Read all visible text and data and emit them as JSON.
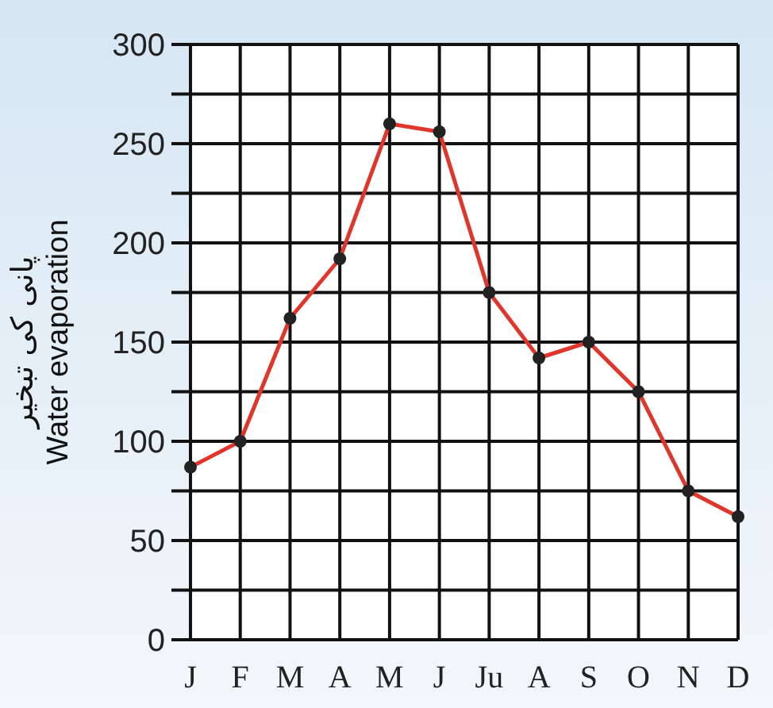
{
  "chart_data": {
    "type": "line",
    "ylabel": "پانی کی تبخیر\nWater evaporation",
    "categories": [
      "J",
      "F",
      "M",
      "A",
      "M",
      "J",
      "Ju",
      "A",
      "S",
      "O",
      "N",
      "D"
    ],
    "series": [
      {
        "color": "#e0352b",
        "values": [
          87,
          100,
          162,
          192,
          260,
          256,
          175,
          142,
          150,
          125,
          75,
          62
        ]
      }
    ],
    "ylim": [
      0,
      300
    ],
    "yticks": [
      0,
      {
        "value": 25,
        "label": null
      },
      50,
      {
        "value": 75,
        "label": null
      },
      100,
      {
        "value": 125,
        "label": null
      },
      150,
      {
        "value": 175,
        "label": null
      },
      200,
      {
        "value": 225,
        "label": null
      },
      250,
      {
        "value": 275,
        "label": null
      },
      300
    ],
    "grid": true,
    "marker": "circle",
    "line_style": "solid"
  }
}
